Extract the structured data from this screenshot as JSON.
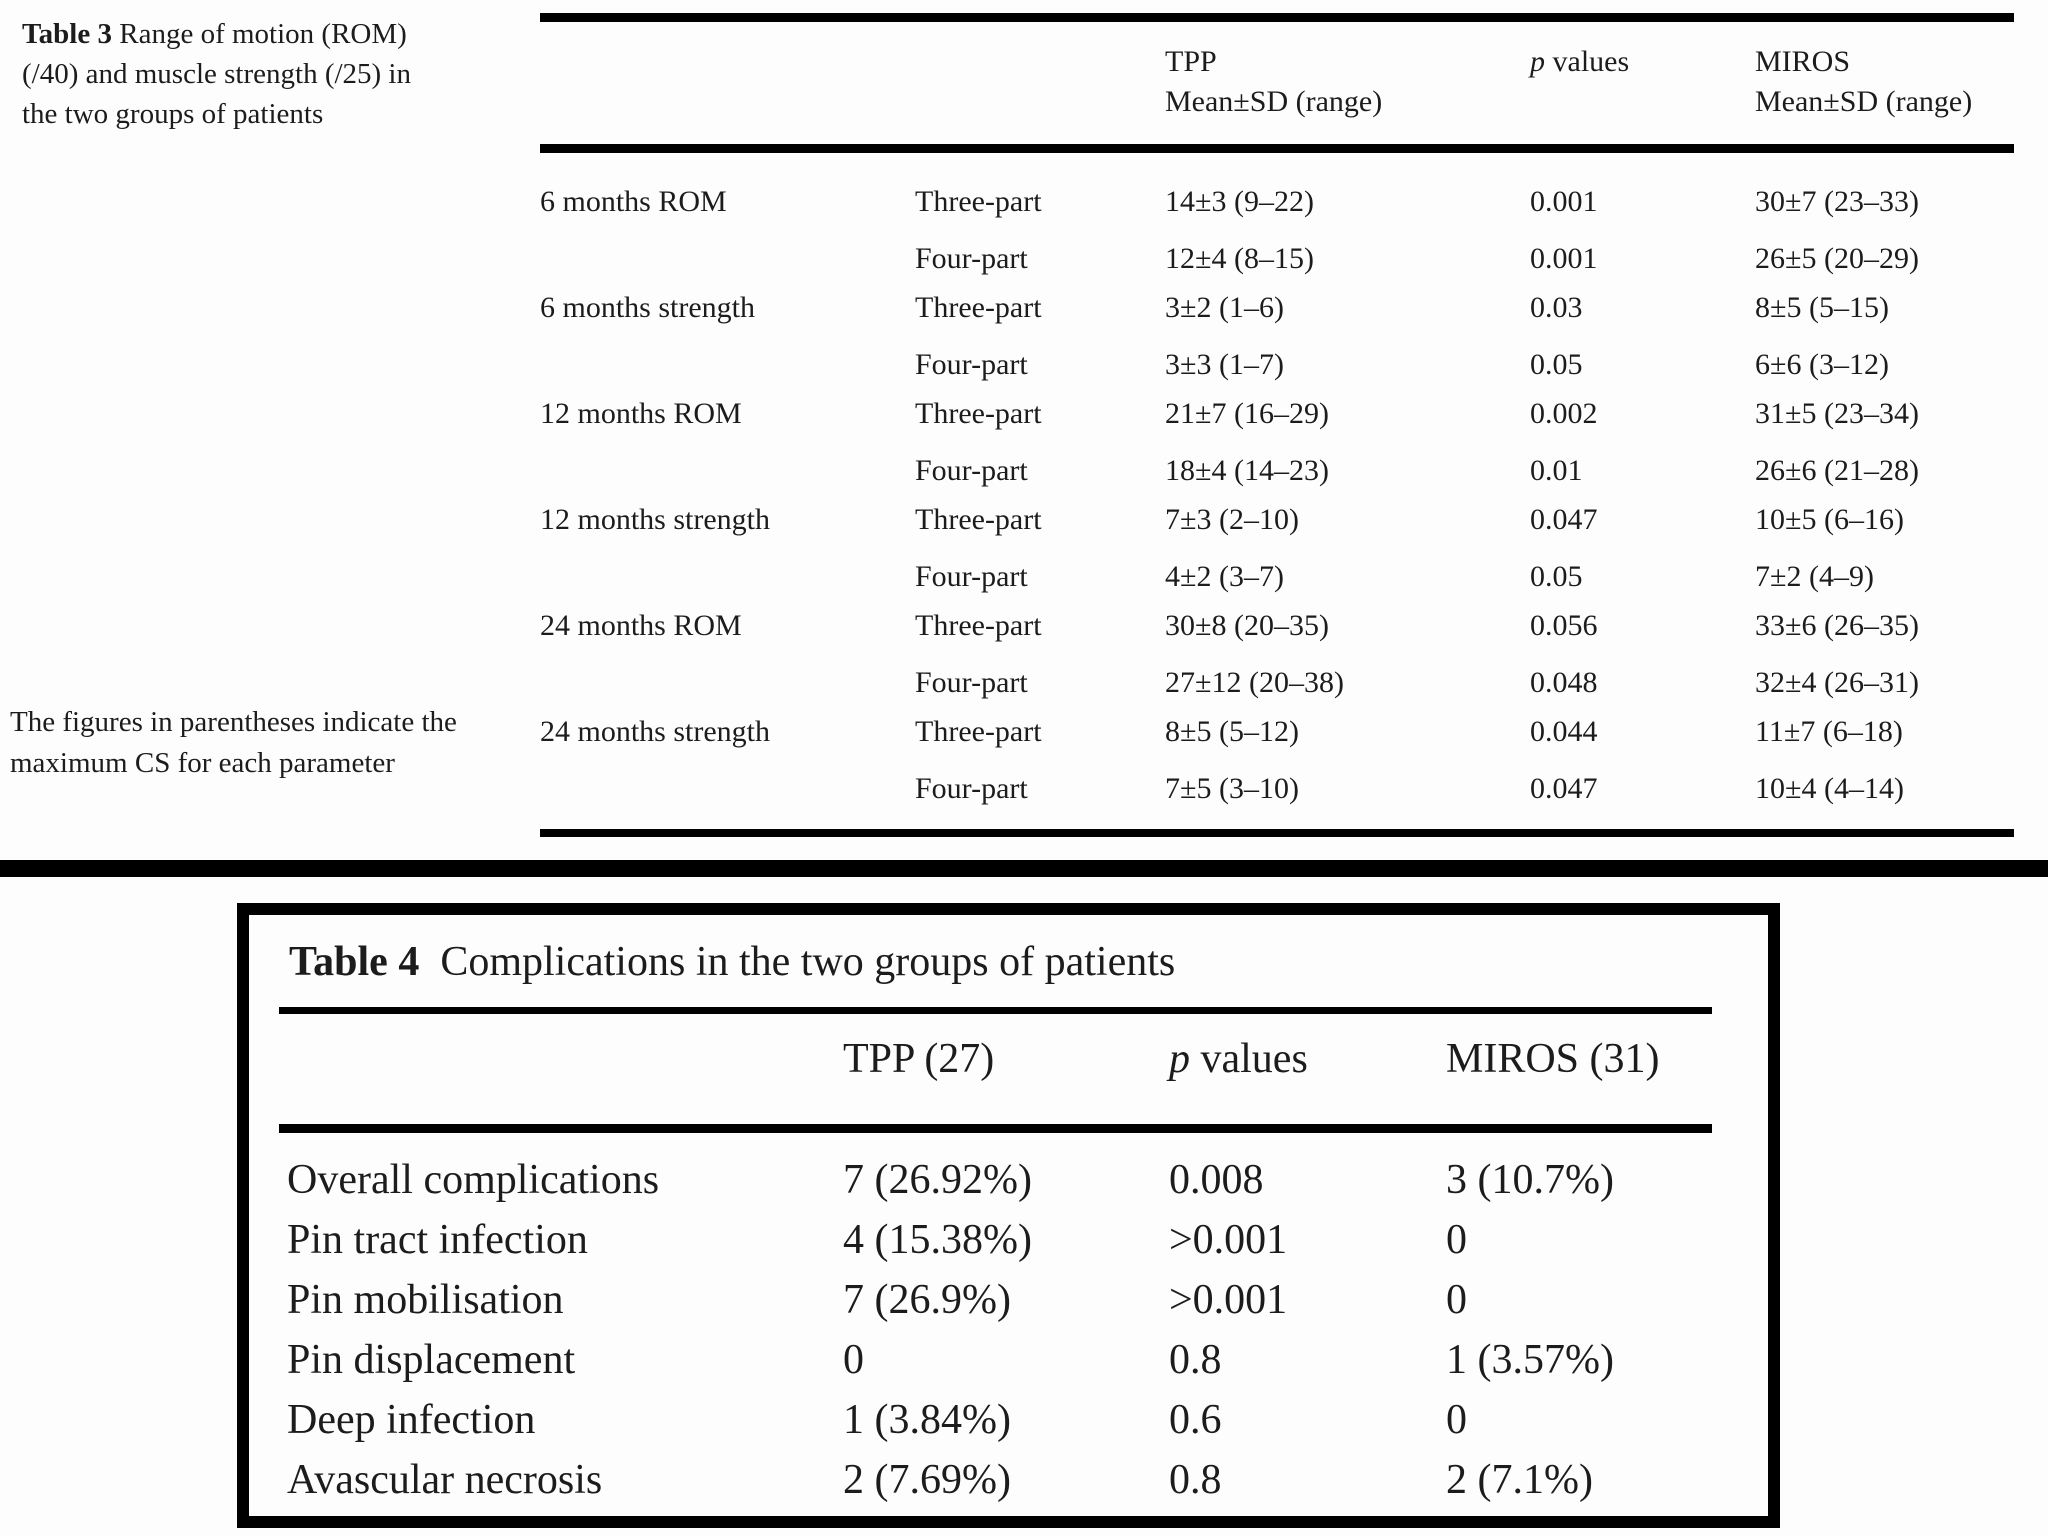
{
  "table3": {
    "caption_label": "Table 3",
    "caption_text": "Range of motion (ROM) (/40) and muscle strength (/25) in the two groups of patients",
    "footnote": "The figures in parentheses indicate the maximum CS for each parameter",
    "header": {
      "tpp_line1": "TPP",
      "tpp_line2": "Mean±SD (range)",
      "p_italic": "p",
      "p_rest": " values",
      "miros_line1": "MIROS",
      "miros_line2": "Mean±SD (range)"
    },
    "rows": [
      {
        "period": "6 months ROM",
        "part": "Three-part",
        "tpp": "14±3 (9–22)",
        "p": "0.001",
        "miros": "30±7 (23–33)"
      },
      {
        "period": "",
        "part": "Four-part",
        "tpp": "12±4 (8–15)",
        "p": "0.001",
        "miros": "26±5 (20–29)"
      },
      {
        "period": "6 months strength",
        "part": "Three-part",
        "tpp": "3±2 (1–6)",
        "p": "0.03",
        "miros": "8±5 (5–15)"
      },
      {
        "period": "",
        "part": "Four-part",
        "tpp": "3±3 (1–7)",
        "p": "0.05",
        "miros": "6±6 (3–12)"
      },
      {
        "period": "12 months ROM",
        "part": "Three-part",
        "tpp": "21±7 (16–29)",
        "p": "0.002",
        "miros": "31±5 (23–34)"
      },
      {
        "period": "",
        "part": "Four-part",
        "tpp": "18±4 (14–23)",
        "p": "0.01",
        "miros": "26±6 (21–28)"
      },
      {
        "period": "12 months strength",
        "part": "Three-part",
        "tpp": "7±3 (2–10)",
        "p": "0.047",
        "miros": "10±5 (6–16)"
      },
      {
        "period": "",
        "part": "Four-part",
        "tpp": "4±2 (3–7)",
        "p": "0.05",
        "miros": "7±2 (4–9)"
      },
      {
        "period": "24 months ROM",
        "part": "Three-part",
        "tpp": "30±8 (20–35)",
        "p": "0.056",
        "miros": "33±6 (26–35)"
      },
      {
        "period": "",
        "part": "Four-part",
        "tpp": "27±12 (20–38)",
        "p": "0.048",
        "miros": "32±4 (26–31)"
      },
      {
        "period": "24 months strength",
        "part": "Three-part",
        "tpp": "8±5 (5–12)",
        "p": "0.044",
        "miros": "11±7 (6–18)"
      },
      {
        "period": "",
        "part": "Four-part",
        "tpp": "7±5 (3–10)",
        "p": "0.047",
        "miros": "10±4 (4–14)"
      }
    ]
  },
  "table4": {
    "caption_label": "Table 4",
    "caption_text": "Complications in the two groups of patients",
    "header": {
      "tpp": "TPP (27)",
      "p_italic": "p",
      "p_rest": " values",
      "miros": "MIROS (31)"
    },
    "rows": [
      {
        "label": "Overall complications",
        "tpp": "7 (26.92%)",
        "p": "0.008",
        "miros": "3 (10.7%)"
      },
      {
        "label": "Pin tract infection",
        "tpp": "4 (15.38%)",
        "p": ">0.001",
        "miros": "0"
      },
      {
        "label": "Pin mobilisation",
        "tpp": "7 (26.9%)",
        "p": ">0.001",
        "miros": "0"
      },
      {
        "label": "Pin displacement",
        "tpp": "0",
        "p": "0.8",
        "miros": "1 (3.57%)"
      },
      {
        "label": "Deep infection",
        "tpp": "1 (3.84%)",
        "p": "0.6",
        "miros": "0"
      },
      {
        "label": "Avascular necrosis",
        "tpp": "2 (7.69%)",
        "p": "0.8",
        "miros": "2 (7.1%)"
      }
    ]
  }
}
